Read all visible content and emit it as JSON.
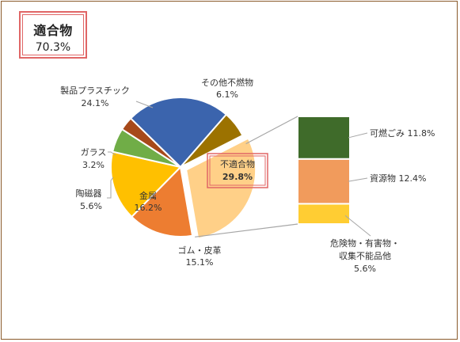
{
  "summary": {
    "title": "適合物",
    "value": "70.3%"
  },
  "colors": {
    "plastic": "#3b64ad",
    "other": "#9c7200",
    "glass": "#a7491a",
    "ceramic": "#70ad47",
    "metal": "#ffc000",
    "rubber": "#ed7d31",
    "unsuitable": "#ffd088",
    "combustible": "#3f6b2a",
    "resource": "#f19b5c",
    "hazardous": "#ffcd33",
    "leader": "#a6a6a6",
    "highlight": "#e06666"
  },
  "chart_data": [
    {
      "type": "pie",
      "start_angle_deg": -27,
      "slices": [
        {
          "key": "unsuitable",
          "name": "不適合物",
          "value": 29.8,
          "label": "29.8%",
          "exploded": true
        },
        {
          "key": "rubber",
          "name": "ゴム・皮革",
          "value": 15.1,
          "label": "15.1%"
        },
        {
          "key": "metal",
          "name": "金属",
          "value": 16.2,
          "label": "16.2%"
        },
        {
          "key": "ceramic",
          "name": "陶磁器",
          "value": 5.6,
          "label": "5.6%"
        },
        {
          "key": "glass",
          "name": "ガラス",
          "value": 3.2,
          "label": "3.2%"
        },
        {
          "key": "plastic",
          "name": "製品プラスチック",
          "value": 24.1,
          "label": "24.1%"
        },
        {
          "key": "other",
          "name": "その他不燃物",
          "value": 6.1,
          "label": "6.1%"
        }
      ]
    },
    {
      "type": "bar",
      "stacked": true,
      "segments": [
        {
          "key": "combustible",
          "name": "可燃ごみ",
          "value": 11.8,
          "label": "11.8%"
        },
        {
          "key": "resource",
          "name": "資源物",
          "value": 12.4,
          "label": "12.4%"
        },
        {
          "key": "hazardous",
          "name": "危険物・有害物・収集不能品他",
          "name_lines": [
            "危険物・有害物・",
            "収集不能品他"
          ],
          "value": 5.6,
          "label": "5.6%"
        }
      ]
    }
  ]
}
